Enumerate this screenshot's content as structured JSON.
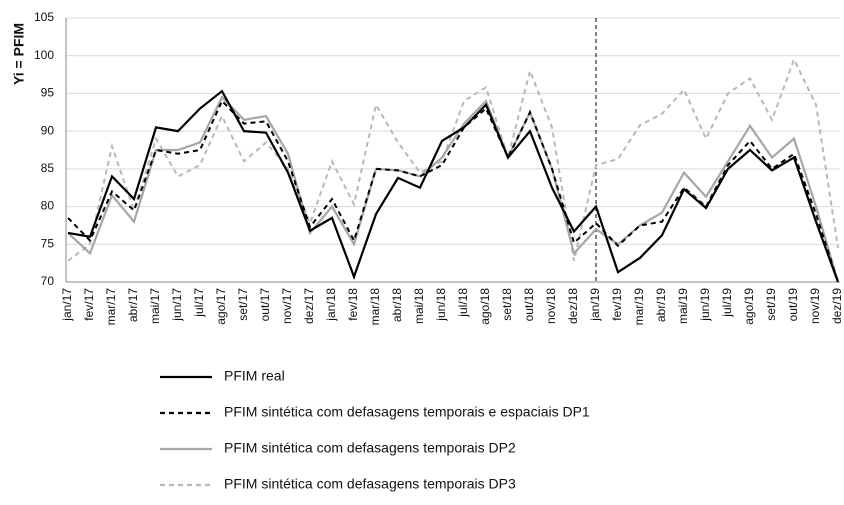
{
  "chart_data": {
    "type": "line",
    "y_label": "Yi = PFIM",
    "categories": [
      "jan/17",
      "fev/17",
      "mar/17",
      "abr/17",
      "mai/17",
      "jun/17",
      "jul/17",
      "ago/17",
      "set/17",
      "out/17",
      "nov/17",
      "dez/17",
      "jan/18",
      "fev/18",
      "mar/18",
      "abr/18",
      "mai/18",
      "jun/18",
      "jul/18",
      "ago/18",
      "set/18",
      "out/18",
      "nov/18",
      "dez/18",
      "jan/19",
      "fev/19",
      "mar/19",
      "abr/19",
      "mai/19",
      "jun/19",
      "jul/19",
      "ago/19",
      "set/19",
      "out/19",
      "nov/19",
      "dez/19"
    ],
    "series": [
      {
        "name": "PFIM real",
        "color": "#000000",
        "dashed": false,
        "values": [
          76.5,
          76,
          84,
          81,
          90.5,
          90,
          93,
          95.3,
          90,
          89.8,
          84.5,
          76.8,
          78.5,
          70.7,
          79,
          83.8,
          82.5,
          88.7,
          90.5,
          93.5,
          86.5,
          90,
          82.5,
          76.7,
          80,
          71.3,
          73.2,
          76.2,
          82.3,
          79.8,
          85,
          87.5,
          84.8,
          86.5,
          78,
          70
        ]
      },
      {
        "name": "PFIM sintética com defasagens temporais e espaciais DP1",
        "color": "#000000",
        "dashed": true,
        "values": [
          78.5,
          75.5,
          82,
          79.5,
          87.5,
          87,
          87.5,
          94,
          91,
          91.3,
          86,
          77.3,
          81,
          75.5,
          85,
          84.8,
          84,
          85.5,
          90.5,
          93,
          86.5,
          92.5,
          85,
          75.2,
          77.8,
          74.8,
          77.5,
          78,
          82.5,
          80,
          85.5,
          88.7,
          85,
          87,
          79,
          70
        ]
      },
      {
        "name": "PFIM sintética com defasagens temporais DP2",
        "color": "#a6a6a6",
        "dashed": false,
        "values": [
          76.5,
          73.8,
          81.5,
          78,
          87.5,
          87.5,
          88.5,
          94.5,
          91.5,
          92,
          87,
          76.5,
          80,
          75,
          85,
          84.8,
          84,
          86.5,
          91,
          94,
          86.5,
          92.5,
          85,
          73.8,
          77,
          75,
          77.5,
          79.2,
          84.5,
          81.3,
          86,
          90.7,
          86.5,
          89,
          80,
          70
        ]
      },
      {
        "name": "PFIM sintética com defasagens temporais DP3",
        "color": "#b8b8b8",
        "dashed": true,
        "values": [
          72.8,
          75,
          88,
          79.5,
          89,
          84,
          85.5,
          92,
          86,
          88.5,
          85,
          77.8,
          86,
          80.3,
          93.5,
          88.5,
          84.5,
          86,
          94,
          95.8,
          86.5,
          98,
          90.5,
          72.8,
          85.5,
          86.3,
          90.8,
          92.3,
          95.5,
          89,
          95,
          97,
          91.5,
          99.5,
          93.5,
          74.5
        ]
      }
    ],
    "ylim": [
      70,
      105
    ],
    "yticks": [
      70,
      75,
      80,
      85,
      90,
      95,
      100,
      105
    ],
    "grid": true,
    "vline": "jan/19"
  }
}
